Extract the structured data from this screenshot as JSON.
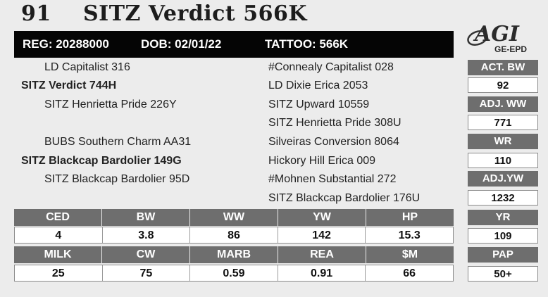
{
  "header": {
    "lot": "91",
    "name": "SITZ Verdict 566K"
  },
  "id_bar": {
    "reg": "REG: 20288000",
    "dob": "DOB: 02/01/22",
    "tattoo": "TATTOO: 566K"
  },
  "logo": {
    "main": "AGI",
    "sub": "GE-EPD"
  },
  "pedigree": {
    "left": [
      "LD Capitalist 316",
      "SITZ Verdict 744H",
      "SITZ Henrietta Pride 226Y",
      "BUBS Southern Charm AA31",
      "SITZ Blackcap Bardolier 149G",
      "SITZ Blackcap Bardolier 95D"
    ],
    "right": [
      "#Connealy Capitalist 028",
      "LD Dixie Erica 2053",
      "SITZ Upward 10559",
      "SITZ Henrietta Pride 308U",
      "Silveiras Conversion 8064",
      "Hickory Hill Erica 009",
      "#Mohnen Substantial 272",
      "SITZ Blackcap Bardolier 176U"
    ]
  },
  "right_stats": [
    {
      "label": "ACT. BW",
      "value": "92"
    },
    {
      "label": "ADJ. WW",
      "value": "771"
    },
    {
      "label": "WR",
      "value": "110"
    },
    {
      "label": "ADJ.YW",
      "value": "1232"
    },
    {
      "label": "YR",
      "value": "109"
    },
    {
      "label": "PAP",
      "value": "50+"
    }
  ],
  "epd_row1": {
    "headers": [
      "CED",
      "BW",
      "WW",
      "YW",
      "HP"
    ],
    "values": [
      "4",
      "3.8",
      "86",
      "142",
      "15.3"
    ]
  },
  "epd_row2": {
    "headers": [
      "MILK",
      "CW",
      "MARB",
      "REA",
      "$M"
    ],
    "values": [
      "25",
      "75",
      "0.59",
      "0.91",
      "66"
    ]
  },
  "colors": {
    "header_bg": "#6e6e6e",
    "bar_bg": "#050505",
    "page_bg": "#ececec"
  }
}
